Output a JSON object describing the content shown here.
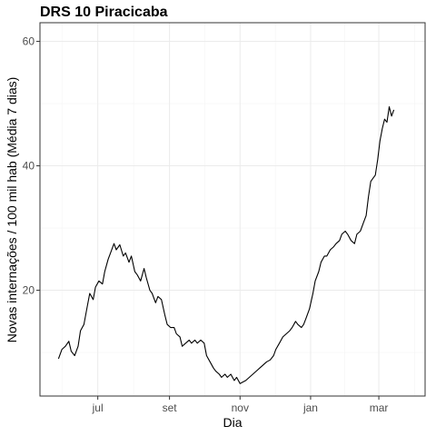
{
  "chart_data": {
    "type": "line",
    "title": "DRS 10 Piracicaba",
    "xlabel": "Dia",
    "ylabel": "Novas internações / 100 mil hab (Média 7 dias)",
    "x_unit": "date",
    "xlim": [
      "2020-05-12",
      "2021-04-10"
    ],
    "ylim": [
      3,
      63
    ],
    "y_ticks": [
      20,
      40,
      60
    ],
    "x_ticks": [
      {
        "date": "2020-07-01",
        "label": "jul"
      },
      {
        "date": "2020-09-01",
        "label": "set"
      },
      {
        "date": "2020-11-01",
        "label": "nov"
      },
      {
        "date": "2021-01-01",
        "label": "jan"
      },
      {
        "date": "2021-03-01",
        "label": "mar"
      }
    ],
    "grid": true,
    "legend": "none",
    "line_color": "#000000",
    "series": [
      {
        "values": [
          [
            "2020-05-28",
            9.0
          ],
          [
            "2020-05-31",
            10.5
          ],
          [
            "2020-06-03",
            11.0
          ],
          [
            "2020-06-06",
            11.8
          ],
          [
            "2020-06-08",
            10.2
          ],
          [
            "2020-06-11",
            9.5
          ],
          [
            "2020-06-14",
            11.0
          ],
          [
            "2020-06-16",
            13.5
          ],
          [
            "2020-06-19",
            14.5
          ],
          [
            "2020-06-22",
            17.5
          ],
          [
            "2020-06-24",
            19.5
          ],
          [
            "2020-06-27",
            18.5
          ],
          [
            "2020-06-29",
            20.5
          ],
          [
            "2020-07-02",
            21.5
          ],
          [
            "2020-07-05",
            21.0
          ],
          [
            "2020-07-07",
            23.0
          ],
          [
            "2020-07-10",
            25.0
          ],
          [
            "2020-07-12",
            26.0
          ],
          [
            "2020-07-15",
            27.5
          ],
          [
            "2020-07-17",
            26.5
          ],
          [
            "2020-07-20",
            27.3
          ],
          [
            "2020-07-23",
            25.5
          ],
          [
            "2020-07-25",
            26.0
          ],
          [
            "2020-07-28",
            24.5
          ],
          [
            "2020-07-30",
            25.5
          ],
          [
            "2020-08-02",
            23.0
          ],
          [
            "2020-08-04",
            22.5
          ],
          [
            "2020-08-07",
            21.5
          ],
          [
            "2020-08-10",
            23.5
          ],
          [
            "2020-08-12",
            22.0
          ],
          [
            "2020-08-15",
            20.0
          ],
          [
            "2020-08-17",
            19.5
          ],
          [
            "2020-08-20",
            18.0
          ],
          [
            "2020-08-22",
            19.0
          ],
          [
            "2020-08-25",
            18.5
          ],
          [
            "2020-08-28",
            16.0
          ],
          [
            "2020-08-30",
            14.5
          ],
          [
            "2020-09-02",
            14.0
          ],
          [
            "2020-09-05",
            14.0
          ],
          [
            "2020-09-07",
            13.0
          ],
          [
            "2020-09-10",
            12.5
          ],
          [
            "2020-09-12",
            11.0
          ],
          [
            "2020-09-15",
            11.5
          ],
          [
            "2020-09-18",
            12.0
          ],
          [
            "2020-09-20",
            11.5
          ],
          [
            "2020-09-23",
            12.0
          ],
          [
            "2020-09-25",
            11.5
          ],
          [
            "2020-09-28",
            12.0
          ],
          [
            "2020-10-01",
            11.5
          ],
          [
            "2020-10-03",
            9.5
          ],
          [
            "2020-10-06",
            8.5
          ],
          [
            "2020-10-09",
            7.5
          ],
          [
            "2020-10-11",
            7.0
          ],
          [
            "2020-10-14",
            6.5
          ],
          [
            "2020-10-16",
            6.0
          ],
          [
            "2020-10-19",
            6.5
          ],
          [
            "2020-10-21",
            6.0
          ],
          [
            "2020-10-24",
            6.5
          ],
          [
            "2020-10-27",
            5.5
          ],
          [
            "2020-10-29",
            6.0
          ],
          [
            "2020-11-01",
            5.0
          ],
          [
            "2020-11-03",
            5.2
          ],
          [
            "2020-11-06",
            5.5
          ],
          [
            "2020-11-09",
            6.0
          ],
          [
            "2020-11-12",
            6.5
          ],
          [
            "2020-11-15",
            7.0
          ],
          [
            "2020-11-18",
            7.5
          ],
          [
            "2020-11-21",
            8.0
          ],
          [
            "2020-11-24",
            8.5
          ],
          [
            "2020-11-27",
            8.8
          ],
          [
            "2020-11-30",
            9.5
          ],
          [
            "2020-12-02",
            10.5
          ],
          [
            "2020-12-05",
            11.5
          ],
          [
            "2020-12-08",
            12.5
          ],
          [
            "2020-12-11",
            13.0
          ],
          [
            "2020-12-14",
            13.5
          ],
          [
            "2020-12-16",
            14.0
          ],
          [
            "2020-12-19",
            15.0
          ],
          [
            "2020-12-21",
            14.5
          ],
          [
            "2020-12-24",
            14.0
          ],
          [
            "2020-12-26",
            14.5
          ],
          [
            "2020-12-28",
            15.5
          ],
          [
            "2020-12-31",
            17.0
          ],
          [
            "2021-01-03",
            19.5
          ],
          [
            "2021-01-05",
            21.5
          ],
          [
            "2021-01-08",
            23.0
          ],
          [
            "2021-01-10",
            24.5
          ],
          [
            "2021-01-13",
            25.5
          ],
          [
            "2021-01-15",
            25.5
          ],
          [
            "2021-01-18",
            26.5
          ],
          [
            "2021-01-21",
            27.0
          ],
          [
            "2021-01-23",
            27.5
          ],
          [
            "2021-01-26",
            28.0
          ],
          [
            "2021-01-28",
            29.0
          ],
          [
            "2021-01-31",
            29.5
          ],
          [
            "2021-02-02",
            29.0
          ],
          [
            "2021-02-05",
            28.0
          ],
          [
            "2021-02-08",
            27.5
          ],
          [
            "2021-02-10",
            29.0
          ],
          [
            "2021-02-13",
            29.5
          ],
          [
            "2021-02-16",
            31.0
          ],
          [
            "2021-02-18",
            32.0
          ],
          [
            "2021-02-20",
            35.0
          ],
          [
            "2021-02-22",
            37.5
          ],
          [
            "2021-02-24",
            38.0
          ],
          [
            "2021-02-26",
            38.5
          ],
          [
            "2021-02-28",
            41.0
          ],
          [
            "2021-03-02",
            44.0
          ],
          [
            "2021-03-04",
            46.0
          ],
          [
            "2021-03-06",
            47.5
          ],
          [
            "2021-03-08",
            47.0
          ],
          [
            "2021-03-10",
            49.5
          ],
          [
            "2021-03-12",
            48.0
          ],
          [
            "2021-03-14",
            49.0
          ]
        ]
      }
    ]
  }
}
